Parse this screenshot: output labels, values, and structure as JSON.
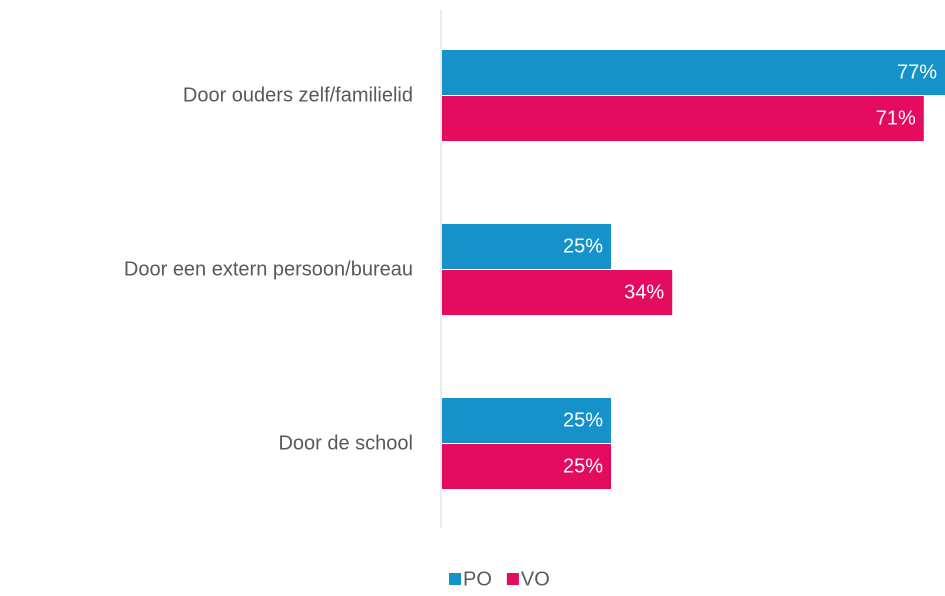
{
  "chart_data": {
    "type": "bar",
    "orientation": "horizontal",
    "categories": [
      "Door ouders zelf/familielid",
      "Door een extern persoon/bureau",
      "Door de school"
    ],
    "series": [
      {
        "name": "PO",
        "color": "#1592c9",
        "values": [
          77,
          25,
          25
        ],
        "value_labels": [
          "77%",
          "25%",
          "25%"
        ]
      },
      {
        "name": "VO",
        "color": "#e50b5f",
        "values": [
          71,
          34,
          25
        ],
        "value_labels": [
          "71%",
          "34%",
          "25%"
        ]
      }
    ],
    "legend": "bottom"
  }
}
